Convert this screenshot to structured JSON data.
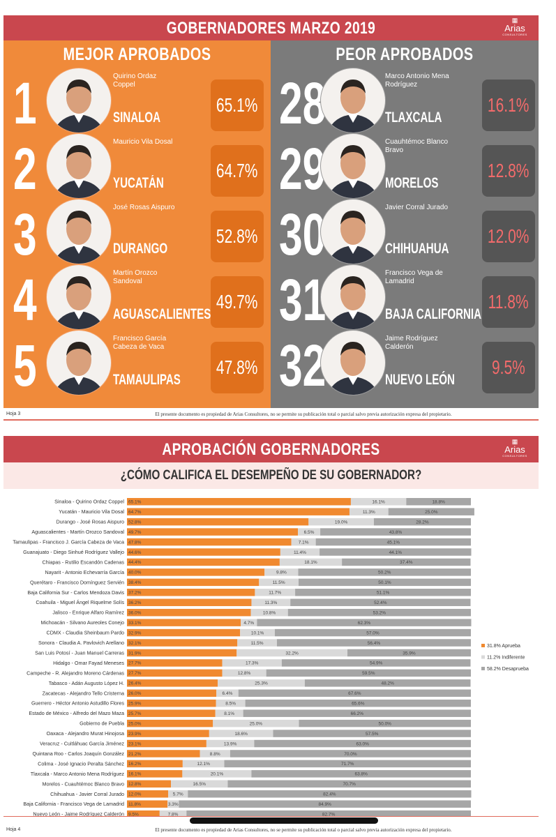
{
  "page1": {
    "title": "GOBERNADORES MARZO 2019",
    "logo": "Arias",
    "logo_sub": "CONSULTORES",
    "best_heading": "MEJOR APROBADOS",
    "worst_heading": "PEOR APROBADOS",
    "best": [
      {
        "rank": "1",
        "name": "Quirino Ordaz Coppel",
        "state": "SINALOA",
        "approval": "65.1%"
      },
      {
        "rank": "2",
        "name": "Mauricio Vila Dosal",
        "state": "YUCATÁN",
        "approval": "64.7%"
      },
      {
        "rank": "3",
        "name": "José Rosas Aispuro",
        "state": "DURANGO",
        "approval": "52.8%"
      },
      {
        "rank": "4",
        "name": "Martín Orozco Sandoval",
        "state": "AGUASCALIENTES",
        "approval": "49.7%"
      },
      {
        "rank": "5",
        "name": "Francisco García Cabeza de Vaca",
        "state": "TAMAULIPAS",
        "approval": "47.8%"
      }
    ],
    "worst": [
      {
        "rank": "28",
        "name": "Marco Antonio Mena Rodríguez",
        "state": "TLAXCALA",
        "approval": "16.1%"
      },
      {
        "rank": "29",
        "name": "Cuauhtémoc Blanco Bravo",
        "state": "MORELOS",
        "approval": "12.8%"
      },
      {
        "rank": "30",
        "name": "Javier Corral Jurado",
        "state": "CHIHUAHUA",
        "approval": "12.0%"
      },
      {
        "rank": "31",
        "name": "Francisco Vega de Lamadrid",
        "state": "BAJA CALIFORNIA",
        "approval": "11.8%"
      },
      {
        "rank": "32",
        "name": "Jaime Rodríguez Calderón",
        "state": "NUEVO LEÓN",
        "approval": "9.5%"
      }
    ],
    "footer": {
      "page": "Hoja 3",
      "notice": "El presente documento es propiedad de Arias Consultores, no se permite su publicación total o parcial salvo previa autorización expresa del propietario."
    }
  },
  "page2": {
    "title": "APROBACIÓN GOBERNADORES",
    "logo": "Arias",
    "logo_sub": "CONSULTORES",
    "footer": {
      "page": "Hoja 4",
      "notice": "El presente documento es propiedad de Arias Consultores, no se permite su publicación total o parcial salvo previa autorización expresa del propietario."
    }
  },
  "chart_data": {
    "type": "bar",
    "orientation": "horizontal",
    "stacked": true,
    "title": "¿CÓMO CALIFICA EL DESEMPEÑO DE SU GOBERNADOR?",
    "xlim": [
      0,
      100
    ],
    "legend": "right",
    "categories": [
      "Sinaloa - Quirino Ordaz Coppel",
      "Yucatán - Mauricio Vila Dosal",
      "Durango - José Rosas Aispuro",
      "Aguascalientes - Martín Orozco Sandoval",
      "Tamaulipas - Francisco J. García Cabeza de Vaca",
      "Guanajuato - Diego Sinhué Rodríguez Vallejo",
      "Chiapas - Rutilio Escandón Cadenas",
      "Nayarit - Antonio Echevarría García",
      "Querétaro - Francisco Domínguez Servién",
      "Baja California Sur - Carlos Mendoza Davis",
      "Coahuila - Miguel Ángel Riquelme Solís",
      "Jalisco - Enrique Alfaro Ramírez",
      "Michoacán - Silvano Aureoles Conejo",
      "CDMX - Claudia Sheinbaum Pardo",
      "Sonora - Claudia A. Pavlovich Arellano",
      "San Luis Potosí - Juan Manuel Carreras",
      "Hidalgo - Omar Fayad Meneses",
      "Campeche - R. Alejandro Moreno Cárdenas",
      "Tabasco - Adán Augusto López H.",
      "Zacatecas - Alejandro Tello Cristerna",
      "Guerrero - Héctor Antonio Astudillo Flores",
      "Estado de México - Alfredo del Mazo Maza",
      "Gobierno de Puebla",
      "Oaxaca - Alejandro Murat Hinojosa",
      "Veracruz - Cuitláhuac García Jiménez",
      "Quintana Roo - Carlos Joaquín González",
      "Colima - José Ignacio Peralta Sánchez",
      "Tlaxcala - Marco Antonio Mena Rodríguez",
      "Morelos - Cuauhtémoc Blanco Bravo",
      "Chihuahua - Javier Corral Jurado",
      "Baja California - Francisco Vega de Lamadrid",
      "Nuevo León - Jaime Rodríguez Calderón"
    ],
    "series": [
      {
        "name": "31.8% Aprueba",
        "color": "#f0892f",
        "values": [
          65.1,
          64.7,
          52.8,
          49.7,
          47.8,
          44.6,
          44.4,
          40.0,
          38.4,
          37.2,
          36.2,
          36.0,
          33.1,
          32.9,
          32.1,
          31.9,
          27.7,
          27.7,
          26.4,
          26.0,
          25.9,
          25.7,
          25.0,
          23.9,
          23.1,
          21.2,
          16.2,
          16.1,
          12.8,
          12.0,
          11.8,
          9.5
        ],
        "value_labels": [
          "65.1%",
          "64.7%",
          "52.8%",
          "49.7%",
          "47.8%",
          "44.6%",
          "44.4%",
          "40.0%",
          "38.4%",
          "37.2%",
          "36.2%",
          "36.0%",
          "33.1%",
          "32.9%",
          "32.1%",
          "31.9%",
          "27.7%",
          "27.7%",
          "26.4%",
          "26.0%",
          "25.9%",
          "25.7%",
          "25.0%",
          "23.9%",
          "23.1%",
          "21.2%",
          "16.2%",
          "16.1%",
          "12.8%",
          "12.0%",
          "11.8%",
          "9.5%"
        ]
      },
      {
        "name": "11.2% Indiferente",
        "color": "#d9d9d9",
        "values": [
          16.1,
          11.3,
          19.0,
          6.5,
          7.1,
          11.4,
          18.1,
          9.8,
          11.5,
          11.7,
          11.3,
          10.8,
          4.7,
          10.1,
          11.5,
          32.2,
          17.3,
          12.8,
          25.3,
          6.4,
          8.5,
          8.1,
          25.0,
          18.6,
          13.9,
          8.8,
          12.1,
          20.1,
          16.5,
          5.7,
          3.3,
          7.8
        ],
        "value_labels": [
          "16.1%",
          "11.3%",
          "19.0%",
          "6.5%",
          "7.1%",
          "11.4%",
          "18.1%",
          "9.8%",
          "11.5%",
          "11.7%",
          "11.3%",
          "10.8%",
          "4.7%",
          "10.1%",
          "11.5%",
          "32.2%",
          "17.3%",
          "12.8%",
          "25.3%",
          "6.4%",
          "8.5%",
          "8.1%",
          "25.0%",
          "18.6%",
          "13.9%",
          "8.8%",
          "12.1%",
          "20.1%",
          "16.5%",
          "5.7%",
          "3.3%",
          "7.8%"
        ]
      },
      {
        "name": "58.2% Desaprueba",
        "color": "#a6a6a6",
        "values": [
          18.8,
          25.0,
          28.2,
          43.8,
          45.1,
          44.1,
          37.4,
          50.2,
          50.1,
          51.1,
          52.4,
          53.2,
          62.3,
          57.0,
          56.4,
          35.9,
          54.9,
          59.5,
          48.2,
          67.6,
          65.6,
          66.2,
          50.0,
          57.5,
          63.0,
          70.0,
          71.7,
          63.8,
          70.7,
          82.4,
          84.9,
          82.7
        ],
        "value_labels": [
          "18.8%",
          "25.0%",
          "28.2%",
          "43.8%",
          "45.1%",
          "44.1%",
          "37.4%",
          "50.2%",
          "50.1%",
          "51.1%",
          "52.4%",
          "53.2%",
          "62.3%",
          "57.0%",
          "56.4%",
          "35.9%",
          "54.9%",
          "59.5%",
          "48.2%",
          "67.6%",
          "65.6%",
          "66.2%",
          "50.0%",
          "57.5%",
          "63.0%",
          "70.0%",
          "71.7%",
          "63.8%",
          "70.7%",
          "82.4%",
          "84.9%",
          "82.7%"
        ]
      }
    ]
  }
}
